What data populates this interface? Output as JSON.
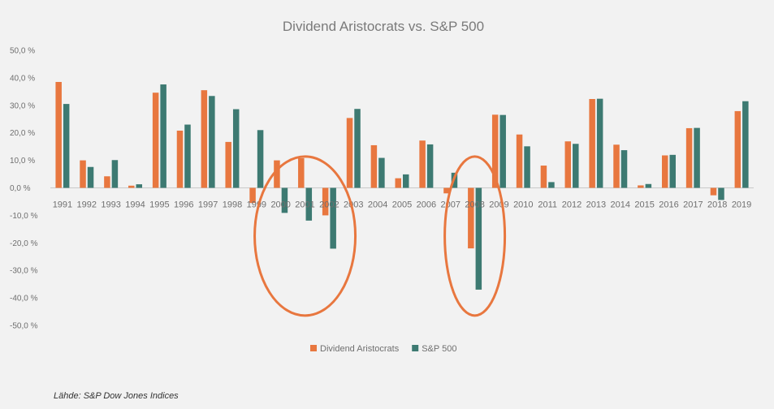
{
  "chart_data": {
    "type": "bar",
    "title": "Dividend Aristocrats vs. S&P 500",
    "categories": [
      "1991",
      "1992",
      "1993",
      "1994",
      "1995",
      "1996",
      "1997",
      "1998",
      "1999",
      "2000",
      "2001",
      "2002",
      "2003",
      "2004",
      "2005",
      "2006",
      "2007",
      "2008",
      "2009",
      "2010",
      "2011",
      "2012",
      "2013",
      "2014",
      "2015",
      "2016",
      "2017",
      "2018",
      "2019"
    ],
    "series": [
      {
        "name": "Dividend Aristocrats",
        "color": "#e8773f",
        "values": [
          38.5,
          10.0,
          4.2,
          0.8,
          34.6,
          20.8,
          35.5,
          16.7,
          -5.5,
          10.0,
          10.8,
          -10.0,
          25.4,
          15.5,
          3.5,
          17.2,
          -2.0,
          -22.0,
          26.6,
          19.4,
          8.1,
          16.9,
          32.3,
          15.7,
          0.9,
          11.8,
          21.7,
          -2.7,
          27.9
        ]
      },
      {
        "name": "S&P 500",
        "color": "#3d7a72",
        "values": [
          30.5,
          7.6,
          10.1,
          1.3,
          37.6,
          23.0,
          33.4,
          28.6,
          21.0,
          -9.1,
          -11.9,
          -22.1,
          28.7,
          10.9,
          4.9,
          15.8,
          5.5,
          -37.0,
          26.5,
          15.1,
          2.1,
          16.0,
          32.4,
          13.7,
          1.4,
          12.0,
          21.8,
          -4.4,
          31.5
        ]
      }
    ],
    "ylim": [
      -50,
      50
    ],
    "yticks": [
      "50,0 %",
      "40,0 %",
      "30,0 %",
      "20,0 %",
      "10,0 %",
      "0,0 %",
      "-10,0 %",
      "-20,0 %",
      "-30,0 %",
      "-40,0 %",
      "-50,0 %"
    ],
    "ytick_values": [
      50,
      40,
      30,
      20,
      10,
      0,
      -10,
      -20,
      -30,
      -40,
      -50
    ],
    "legend_position": "bottom-center",
    "grid": false,
    "annotations": [
      {
        "type": "ellipse",
        "color": "#e8773f",
        "cx": 2001,
        "cy": -17.5
      },
      {
        "type": "ellipse",
        "color": "#e8773f",
        "cx": 2008,
        "cy": -17.5
      }
    ]
  },
  "source": "Lähde: S&P Dow Jones Indices"
}
